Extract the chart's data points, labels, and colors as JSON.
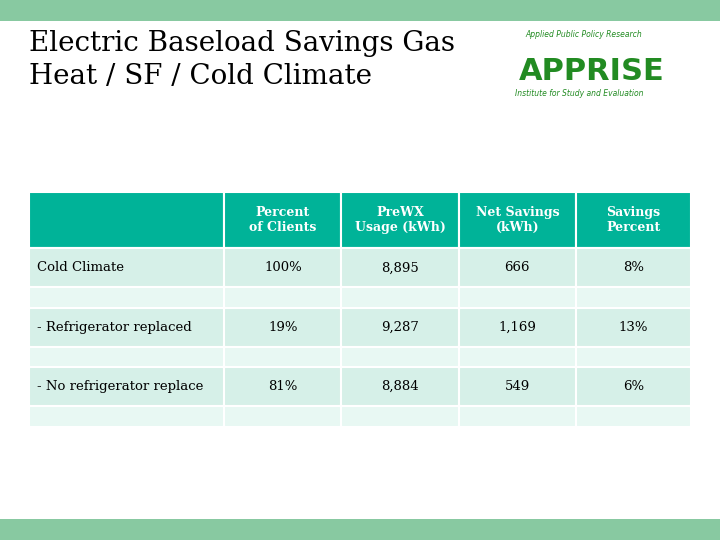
{
  "title_line1": "Electric Baseload Savings Gas",
  "title_line2": "Heat / SF / Cold Climate",
  "title_fontsize": 20,
  "title_color": "#000000",
  "background_color": "#ffffff",
  "border_color": "#88c9a1",
  "header_bg": "#00b398",
  "header_text_color": "#ffffff",
  "row_bg_data": "#d6f0e8",
  "row_bg_spacer": "#e8f8f3",
  "cell_text_color": "#000000",
  "col_headers": [
    "Percent\nof Clients",
    "PreWX\nUsage (kWh)",
    "Net Savings\n(kWh)",
    "Savings\nPercent"
  ],
  "row_labels": [
    "Cold Climate",
    "- Refrigerator replaced",
    "- No refrigerator replace"
  ],
  "data": [
    [
      "100%",
      "8,895",
      "666",
      "8%"
    ],
    [
      "19%",
      "9,287",
      "1,169",
      "13%"
    ],
    [
      "81%",
      "8,884",
      "549",
      "6%"
    ]
  ],
  "apprise_text": "APPRISE",
  "apprise_color": "#228B22",
  "apprise_top_text": "Applied Public Policy Research",
  "apprise_bot_text": "Institute for Study and Evaluation",
  "apprise_small_color": "#228B22"
}
